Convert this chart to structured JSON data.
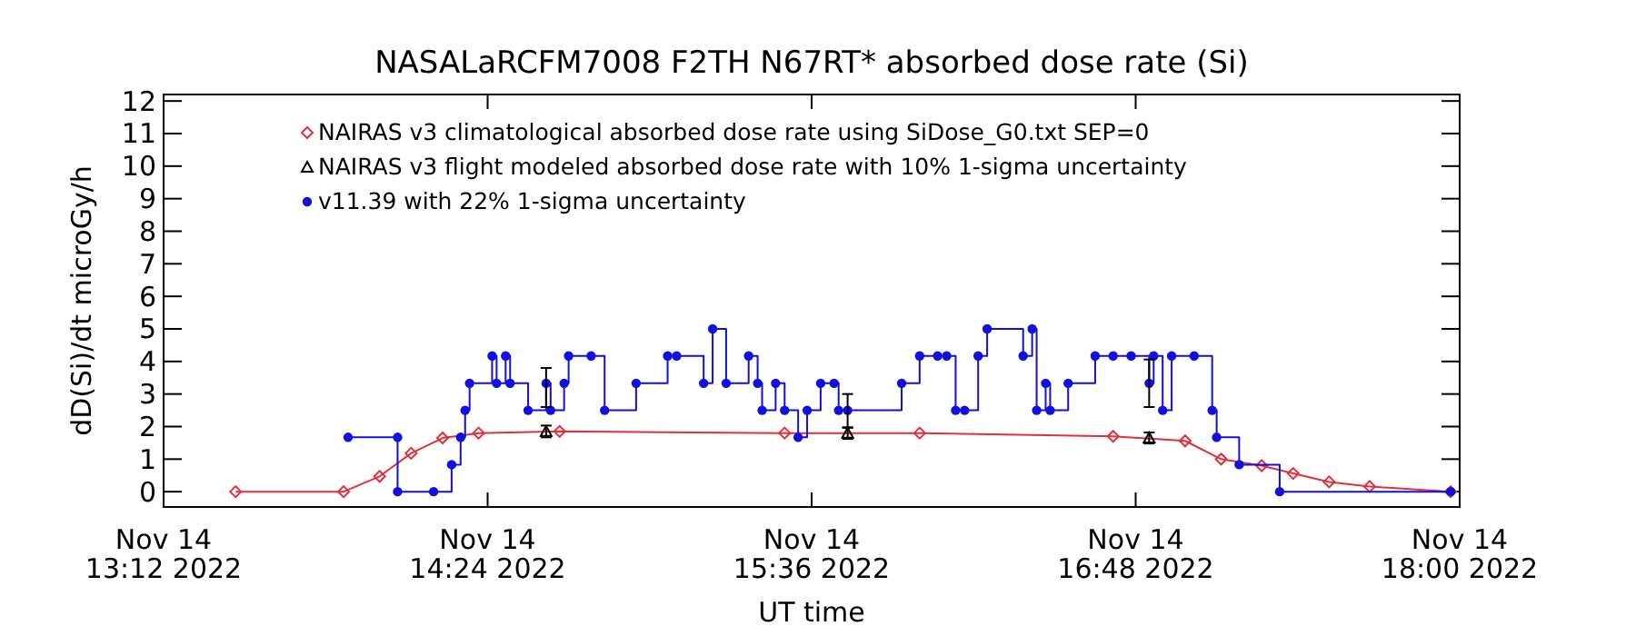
{
  "chart_data": {
    "type": "line",
    "title": "NASALaRCFM7008  F2TH N67RT* absorbed dose rate (Si)",
    "xlabel": "UT time",
    "ylabel": "dD(Si)/dt microGy/h",
    "xlim": [
      "2022-11-14T13:12",
      "2022-11-14T18:00"
    ],
    "xticks": [
      {
        "value": "2022-11-14T13:12",
        "label": "Nov 14\n13:12 2022"
      },
      {
        "value": "2022-11-14T14:24",
        "label": "Nov 14\n14:24 2022"
      },
      {
        "value": "2022-11-14T15:36",
        "label": "Nov 14\n15:36 2022"
      },
      {
        "value": "2022-11-14T16:48",
        "label": "Nov 14\n16:48 2022"
      },
      {
        "value": "2022-11-14T18:00",
        "label": "Nov 14\n18:00 2022"
      }
    ],
    "ylim": [
      -0.47,
      12.2
    ],
    "yticks": [
      0,
      1,
      2,
      3,
      4,
      5,
      6,
      7,
      8,
      9,
      10,
      11,
      12
    ],
    "grid": false,
    "legend": "top left",
    "series": [
      {
        "name": "NAIRAS v3 climatological absorbed dose rate using SiDose_G0.txt SEP=0",
        "color": "#e0303a",
        "marker": "diamond",
        "x": [
          "2022-11-14T13:28",
          "2022-11-14T13:52",
          "2022-11-14T14:00",
          "2022-11-14T14:07",
          "2022-11-14T14:14",
          "2022-11-14T14:22",
          "2022-11-14T14:40",
          "2022-11-14T15:30",
          "2022-11-14T16:00",
          "2022-11-14T16:43",
          "2022-11-14T16:59",
          "2022-11-14T17:07",
          "2022-11-14T17:16",
          "2022-11-14T17:23",
          "2022-11-14T17:31",
          "2022-11-14T17:40",
          "2022-11-14T17:58"
        ],
        "values": [
          0,
          0,
          0.47,
          1.18,
          1.65,
          1.8,
          1.85,
          1.8,
          1.8,
          1.7,
          1.56,
          1.0,
          0.8,
          0.56,
          0.3,
          0.16,
          0
        ]
      },
      {
        "name": "NAIRAS v3 flight modeled absorbed dose rate with 10% 1-sigma uncertainty",
        "color": "#000000",
        "type": "scatter",
        "marker": "triangle",
        "x": [
          "2022-11-14T14:37",
          "2022-11-14T15:44",
          "2022-11-14T16:51"
        ],
        "values": [
          1.85,
          1.8,
          1.65
        ],
        "errors": [
          0.18,
          0.18,
          0.17
        ]
      },
      {
        "name": "v11.39 with 22% 1-sigma uncertainty",
        "color": "#1010e0",
        "type": "step",
        "marker": "circle",
        "x": [
          "2022-11-14T13:53",
          "2022-11-14T14:04",
          "2022-11-14T14:04",
          "2022-11-14T14:12",
          "2022-11-14T14:16",
          "2022-11-14T14:18",
          "2022-11-14T14:19",
          "2022-11-14T14:20",
          "2022-11-14T14:25",
          "2022-11-14T14:26",
          "2022-11-14T14:28",
          "2022-11-14T14:29",
          "2022-11-14T14:33",
          "2022-11-14T14:37",
          "2022-11-14T14:38",
          "2022-11-14T14:41",
          "2022-11-14T14:42",
          "2022-11-14T14:47",
          "2022-11-14T14:50",
          "2022-11-14T14:57",
          "2022-11-14T15:04",
          "2022-11-14T15:06",
          "2022-11-14T15:12",
          "2022-11-14T15:14",
          "2022-11-14T15:17",
          "2022-11-14T15:22",
          "2022-11-14T15:24",
          "2022-11-14T15:25",
          "2022-11-14T15:28",
          "2022-11-14T15:30",
          "2022-11-14T15:33",
          "2022-11-14T15:35",
          "2022-11-14T15:38",
          "2022-11-14T15:41",
          "2022-11-14T15:42",
          "2022-11-14T15:44",
          "2022-11-14T15:56",
          "2022-11-14T16:00",
          "2022-11-14T16:04",
          "2022-11-14T16:06",
          "2022-11-14T16:08",
          "2022-11-14T16:10",
          "2022-11-14T16:13",
          "2022-11-14T16:15",
          "2022-11-14T16:23",
          "2022-11-14T16:25",
          "2022-11-14T16:26",
          "2022-11-14T16:28",
          "2022-11-14T16:29",
          "2022-11-14T16:33",
          "2022-11-14T16:39",
          "2022-11-14T16:43",
          "2022-11-14T16:47",
          "2022-11-14T16:51",
          "2022-11-14T16:52",
          "2022-11-14T16:54",
          "2022-11-14T16:56",
          "2022-11-14T17:01",
          "2022-11-14T17:05",
          "2022-11-14T17:06",
          "2022-11-14T17:11",
          "2022-11-14T17:20",
          "2022-11-14T17:58"
        ],
        "values": [
          1.67,
          1.67,
          0,
          0,
          0.83,
          1.67,
          2.5,
          3.33,
          4.17,
          3.33,
          4.17,
          3.33,
          2.5,
          3.33,
          2.5,
          3.33,
          4.17,
          4.17,
          2.5,
          3.33,
          4.17,
          4.17,
          3.33,
          5,
          3.33,
          4.17,
          3.33,
          2.5,
          3.33,
          2.5,
          1.67,
          2.5,
          3.33,
          3.33,
          2.5,
          2.5,
          3.33,
          4.17,
          4.17,
          4.17,
          2.5,
          2.5,
          4.17,
          5,
          4.17,
          5,
          2.5,
          3.33,
          2.5,
          3.33,
          4.17,
          4.17,
          4.17,
          3.33,
          4.17,
          2.5,
          4.17,
          4.17,
          2.5,
          1.67,
          0.83,
          0,
          0
        ],
        "errors": [
          null,
          null,
          null,
          null,
          null,
          null,
          null,
          null,
          null,
          null,
          null,
          null,
          null,
          [
            2.6,
            3.8
          ],
          null,
          null,
          null,
          null,
          null,
          null,
          null,
          null,
          null,
          null,
          null,
          null,
          null,
          null,
          null,
          null,
          null,
          null,
          null,
          null,
          null,
          [
            1.96,
            3.0
          ],
          null,
          null,
          null,
          null,
          null,
          null,
          null,
          null,
          null,
          null,
          null,
          null,
          null,
          null,
          null,
          null,
          null,
          [
            2.6,
            4.06
          ],
          null,
          null,
          null,
          null,
          null,
          null,
          null,
          null,
          null
        ]
      }
    ]
  }
}
